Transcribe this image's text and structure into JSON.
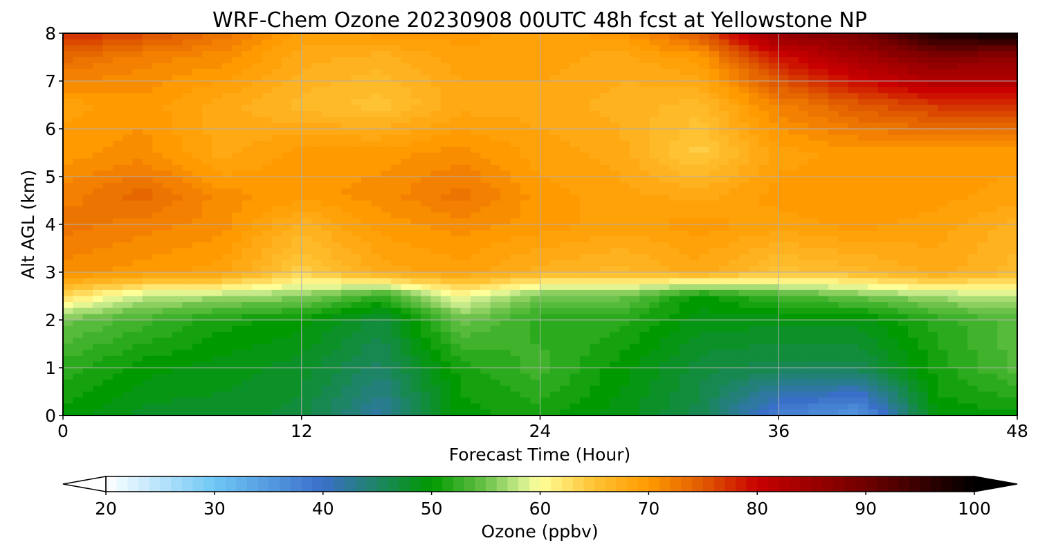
{
  "chart_data": {
    "type": "heatmap",
    "title": "WRF-Chem Ozone  20230908 00UTC 48h fcst at Yellowstone NP",
    "xlabel": "Forecast Time (Hour)",
    "ylabel": "Alt AGL (km)",
    "xlim": [
      0,
      48
    ],
    "ylim": [
      0,
      8
    ],
    "x_ticks": [
      0,
      12,
      24,
      36,
      48
    ],
    "y_ticks": [
      0,
      1,
      2,
      3,
      4,
      5,
      6,
      7,
      8
    ],
    "grid": true,
    "x": [
      0,
      4,
      8,
      12,
      16,
      20,
      24,
      28,
      32,
      36,
      40,
      44,
      48
    ],
    "y": [
      0,
      1,
      2,
      2.5,
      3,
      4,
      4.6,
      5.5,
      6.5,
      7.5,
      8
    ],
    "z": [
      [
        50,
        48,
        48,
        47,
        42,
        50,
        51,
        49,
        46,
        38,
        35,
        50,
        50
      ],
      [
        52,
        50,
        49,
        48,
        45,
        51,
        53,
        50,
        47,
        46,
        46,
        51,
        54
      ],
      [
        55,
        53,
        51,
        50,
        47,
        55,
        52,
        52,
        49,
        49,
        49,
        52,
        54
      ],
      [
        63,
        58,
        57,
        56,
        52,
        60,
        55,
        55,
        50,
        53,
        55,
        57,
        58
      ],
      [
        71,
        70,
        69,
        64,
        68,
        69,
        67,
        66,
        68,
        65,
        66,
        68,
        66
      ],
      [
        73,
        72,
        71,
        67,
        70,
        71,
        70,
        69,
        70,
        69,
        70,
        69,
        67
      ],
      [
        72,
        74,
        71,
        70,
        71,
        73,
        70,
        69,
        68,
        70,
        70,
        70,
        69
      ],
      [
        70,
        71,
        68,
        70,
        70,
        71,
        69,
        68,
        64,
        69,
        70,
        70,
        70
      ],
      [
        69,
        70,
        68,
        66,
        65,
        68,
        68,
        67,
        66,
        72,
        75,
        77,
        78
      ],
      [
        74,
        72,
        71,
        68,
        67,
        69,
        69,
        68,
        70,
        79,
        84,
        88,
        86
      ],
      [
        78,
        76,
        73,
        69,
        70,
        70,
        69,
        70,
        75,
        86,
        89,
        98,
        100
      ]
    ],
    "colorbar": {
      "label": "Ozone  (ppbv)",
      "min": 20,
      "max": 100,
      "tick_values": [
        20,
        30,
        40,
        50,
        60,
        70,
        80,
        90,
        100
      ],
      "extend": "both"
    },
    "colormap_stops": [
      {
        "value": 20,
        "color": "#ffffff"
      },
      {
        "value": 30,
        "color": "#6fc7f5"
      },
      {
        "value": 40,
        "color": "#3a6fc9"
      },
      {
        "value": 50,
        "color": "#009a00"
      },
      {
        "value": 55,
        "color": "#6cc24a"
      },
      {
        "value": 58,
        "color": "#c6e98a"
      },
      {
        "value": 60,
        "color": "#ffff9a"
      },
      {
        "value": 65,
        "color": "#ffc233"
      },
      {
        "value": 70,
        "color": "#ff9a00"
      },
      {
        "value": 75,
        "color": "#e05a00"
      },
      {
        "value": 80,
        "color": "#c80000"
      },
      {
        "value": 90,
        "color": "#700000"
      },
      {
        "value": 100,
        "color": "#000000"
      }
    ],
    "grid_color": "#b0b0b0"
  }
}
